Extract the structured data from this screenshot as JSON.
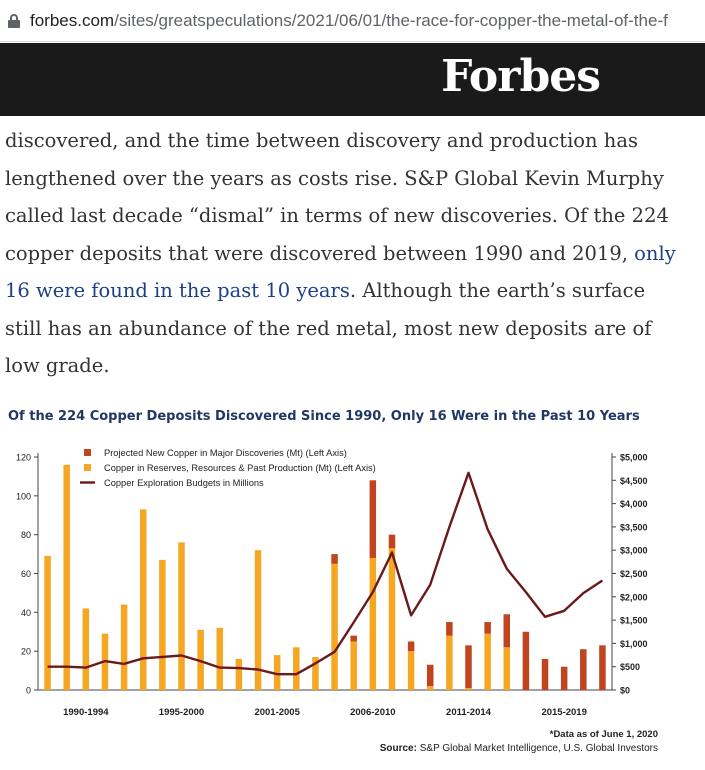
{
  "browser": {
    "url_host": "forbes.com",
    "url_path": "/sites/greatspeculations/2021/06/01/the-race-for-copper-the-metal-of-the-f"
  },
  "header": {
    "logo": "Forbes"
  },
  "article": {
    "text_before_link": "discovered, and the time between discovery and production has lengthened over the years as costs rise. S&P Global Kevin Murphy called last decade “dismal” in terms of new discoveries. Of the 224 copper deposits that were discovered between 1990 and 2019, ",
    "link_text": "only 16 were found in the past 10 years",
    "text_after_link": ". Although the earth’s surface still has an abundance of the red metal, most new deposits are of low grade."
  },
  "chart": {
    "title": "Of the 224 Copper Deposits Discovered Since 1990, Only 16 Were in the Past 10 Years",
    "footnote": "*Data as of June 1, 2020",
    "source_label": "Source:",
    "source_text": "S&P Global Market Intelligence, U.S. Global Investors"
  },
  "chart_data": {
    "type": "bar",
    "title": "Of the 224 Copper Deposits Discovered Since 1990, Only 16 Were in the Past 10 Years",
    "colors": {
      "reserves": "#f5a623",
      "projected": "#c0441d",
      "budget": "#6b1a1a"
    },
    "x_tick_labels": [
      "1990-1994",
      "1995-2000",
      "2001-2005",
      "2006-2010",
      "2011-2014",
      "2015-2019"
    ],
    "left_axis": {
      "ylim": [
        0,
        120
      ],
      "ticks": [
        "0",
        "20",
        "40",
        "60",
        "80",
        "100",
        "120"
      ]
    },
    "right_axis": {
      "ylim": [
        0,
        5000
      ],
      "ticks": [
        "$0",
        "$500",
        "$1,000",
        "$1,500",
        "$2,000",
        "$2,500",
        "$3,000",
        "$3,500",
        "$4,000",
        "$4,500",
        "$5,000"
      ]
    },
    "legend": [
      {
        "name": "Projected New Copper in Major Discoveries (Mt) (Left Axis)",
        "kind": "bar",
        "color": "#c0441d"
      },
      {
        "name": "Copper in Reserves, Resources & Past Production (Mt) (Left Axis)",
        "kind": "bar",
        "color": "#f5a623"
      },
      {
        "name": "Copper Exploration Budgets in Millions",
        "kind": "line",
        "color": "#6b1a1a"
      }
    ],
    "legend_position": "top-left",
    "years": [
      1990,
      1991,
      1992,
      1993,
      1994,
      1995,
      1996,
      1997,
      1998,
      1999,
      2000,
      2001,
      2002,
      2003,
      2004,
      2005,
      2006,
      2007,
      2008,
      2009,
      2010,
      2011,
      2012,
      2013,
      2014,
      2015,
      2016,
      2017,
      2018,
      2019
    ],
    "series": [
      {
        "name": "Copper in Reserves, Resources & Past Production (Mt) (Left Axis)",
        "values": [
          69,
          116,
          42,
          29,
          44,
          93,
          67,
          76,
          31,
          32,
          16,
          72,
          18,
          22,
          17,
          65,
          25,
          68,
          73,
          20,
          2,
          28,
          1,
          29,
          22,
          0,
          0,
          0,
          0,
          0
        ]
      },
      {
        "name": "Projected New Copper in Major Discoveries (Mt) (Left Axis)",
        "values": [
          0,
          0,
          0,
          0,
          0,
          0,
          0,
          0,
          0,
          0,
          0,
          0,
          0,
          0,
          0,
          5,
          3,
          40,
          7,
          5,
          11,
          7,
          22,
          6,
          17,
          30,
          16,
          12,
          21,
          23
        ]
      },
      {
        "name": "Copper Exploration Budgets in Millions",
        "values": [
          500,
          500,
          480,
          620,
          560,
          680,
          710,
          740,
          620,
          480,
          470,
          440,
          340,
          340,
          570,
          820,
          1450,
          2100,
          2950,
          1600,
          2260,
          3500,
          4660,
          3450,
          2600,
          2100,
          1570,
          1700,
          2080,
          2350
        ]
      }
    ]
  }
}
